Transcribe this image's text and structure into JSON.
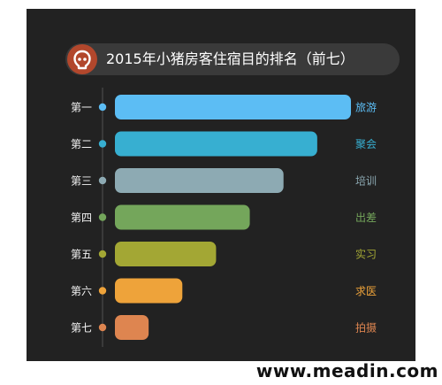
{
  "title": "2015年小猪房客住宿目的排名（前七）",
  "watermark": "www.meadin.com",
  "chart_data": {
    "type": "bar",
    "orientation": "horizontal",
    "title": "2015年小猪房客住宿目的排名（前七）",
    "ranks": [
      "第一",
      "第二",
      "第三",
      "第四",
      "第五",
      "第六",
      "第七"
    ],
    "categories": [
      "旅游",
      "聚会",
      "培训",
      "出差",
      "实习",
      "求医",
      "拍摄"
    ],
    "values": [
      7,
      6,
      5,
      4,
      3,
      2,
      1
    ],
    "colors": [
      "#5cbdf4",
      "#37afd1",
      "#8daab3",
      "#74a65b",
      "#a3a734",
      "#eea33a",
      "#de8550"
    ],
    "value_note": "relative ranking; no numeric axis shown",
    "grid": false
  }
}
